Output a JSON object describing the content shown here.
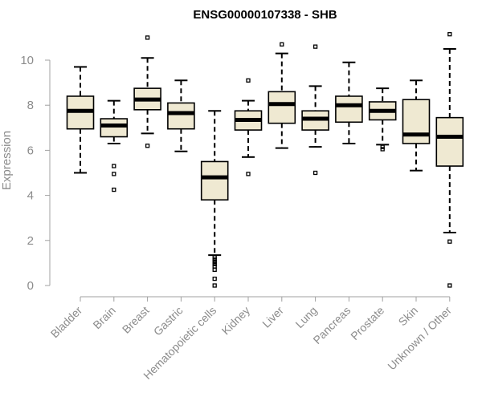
{
  "chart_data": {
    "type": "boxplot",
    "title": "ENSG00000107338 - SHB",
    "xlabel": "",
    "ylabel": "Expression",
    "ylim": [
      0,
      11.5
    ],
    "yticks": [
      0,
      2,
      4,
      6,
      8,
      10
    ],
    "yticks_text": [
      "0",
      "2",
      "4",
      "6",
      "8",
      "10"
    ],
    "box_fill": "#efe9d2",
    "categories": [
      "Bladder",
      "Brain",
      "Breast",
      "Gastric",
      "Hematopoietic cells",
      "Kidney",
      "Liver",
      "Lung",
      "Pancreas",
      "Prostate",
      "Skin",
      "Unknown / Other"
    ],
    "boxes": [
      {
        "min": 5.0,
        "q1": 6.95,
        "median": 7.75,
        "q3": 8.4,
        "max": 9.7,
        "outliers": []
      },
      {
        "min": 6.3,
        "q1": 6.6,
        "median": 7.1,
        "q3": 7.4,
        "max": 8.2,
        "outliers": [
          5.3,
          4.95,
          4.25
        ]
      },
      {
        "min": 6.75,
        "q1": 7.8,
        "median": 8.25,
        "q3": 8.75,
        "max": 10.1,
        "outliers": [
          11.0,
          6.2
        ]
      },
      {
        "min": 5.95,
        "q1": 6.95,
        "median": 7.65,
        "q3": 8.1,
        "max": 9.1,
        "outliers": []
      },
      {
        "min": 1.35,
        "q1": 3.8,
        "median": 4.8,
        "q3": 5.5,
        "max": 7.75,
        "outliers": [
          1.25,
          1.15,
          1.05,
          0.95,
          0.85,
          0.7,
          0.3,
          0.0
        ]
      },
      {
        "min": 5.7,
        "q1": 6.9,
        "median": 7.35,
        "q3": 7.75,
        "max": 8.2,
        "outliers": [
          9.1,
          4.95
        ]
      },
      {
        "min": 6.1,
        "q1": 7.2,
        "median": 8.05,
        "q3": 8.6,
        "max": 10.3,
        "outliers": [
          10.7
        ]
      },
      {
        "min": 6.15,
        "q1": 6.9,
        "median": 7.4,
        "q3": 7.75,
        "max": 8.85,
        "outliers": [
          10.6,
          5.0
        ]
      },
      {
        "min": 6.3,
        "q1": 7.25,
        "median": 8.0,
        "q3": 8.4,
        "max": 9.9,
        "outliers": []
      },
      {
        "min": 6.25,
        "q1": 7.35,
        "median": 7.75,
        "q3": 8.15,
        "max": 8.75,
        "outliers": [
          6.15,
          6.05
        ]
      },
      {
        "min": 5.1,
        "q1": 6.3,
        "median": 6.7,
        "q3": 8.25,
        "max": 9.1,
        "outliers": []
      },
      {
        "min": 2.35,
        "q1": 5.3,
        "median": 6.6,
        "q3": 7.45,
        "max": 10.5,
        "outliers": [
          11.15,
          1.95,
          0.0
        ]
      }
    ]
  }
}
